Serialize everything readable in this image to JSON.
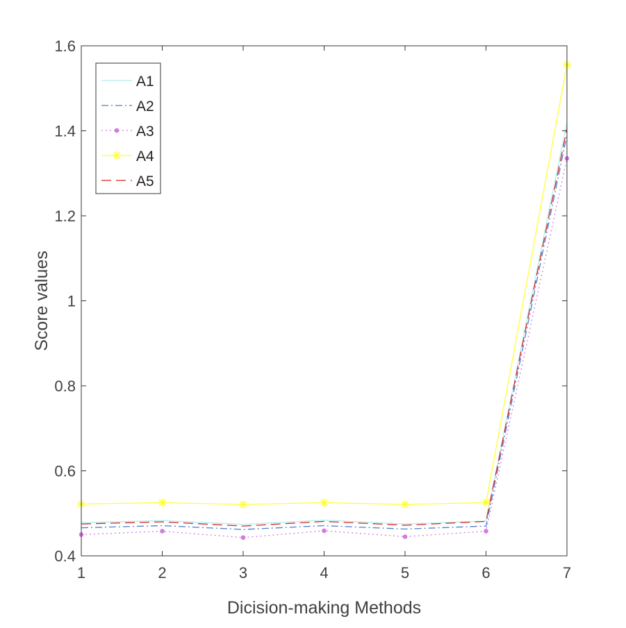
{
  "chart_data": {
    "type": "line",
    "title": "",
    "xlabel": "Dicision-making Methods",
    "ylabel": "Score values",
    "x": [
      1,
      2,
      3,
      4,
      5,
      6,
      7
    ],
    "xlim": [
      1,
      7
    ],
    "ylim": [
      0.4,
      1.6
    ],
    "xticks": [
      1,
      2,
      3,
      4,
      5,
      6,
      7
    ],
    "yticks": [
      0.4,
      0.6,
      0.8,
      1,
      1.2,
      1.4,
      1.6
    ],
    "ytick_labels": [
      "0.4",
      "0.6",
      "0.8",
      "1",
      "1.2",
      "1.4",
      "1.6"
    ],
    "grid": false,
    "legend_position": "top-left",
    "series": [
      {
        "name": "A1",
        "values": [
          0.478,
          0.483,
          0.474,
          0.484,
          0.475,
          0.482,
          1.42
        ],
        "color": "#aeeeee",
        "dash": "solid",
        "marker": "none"
      },
      {
        "name": "A2",
        "values": [
          0.466,
          0.471,
          0.462,
          0.471,
          0.463,
          0.47,
          1.39
        ],
        "color": "#4a7fd0",
        "dash": "dashdot",
        "marker": "none"
      },
      {
        "name": "A3",
        "values": [
          0.45,
          0.458,
          0.443,
          0.459,
          0.445,
          0.458,
          1.335
        ],
        "color": "#d27be0",
        "dash": "dotted",
        "marker": "dot"
      },
      {
        "name": "A4",
        "values": [
          0.522,
          0.525,
          0.521,
          0.525,
          0.521,
          0.525,
          1.555
        ],
        "color": "#ffff33",
        "dash": "solid",
        "marker": "star"
      },
      {
        "name": "A5",
        "values": [
          0.475,
          0.48,
          0.47,
          0.481,
          0.472,
          0.481,
          1.405
        ],
        "color": "#dd2222",
        "dash": "dashed",
        "marker": "none"
      }
    ]
  }
}
